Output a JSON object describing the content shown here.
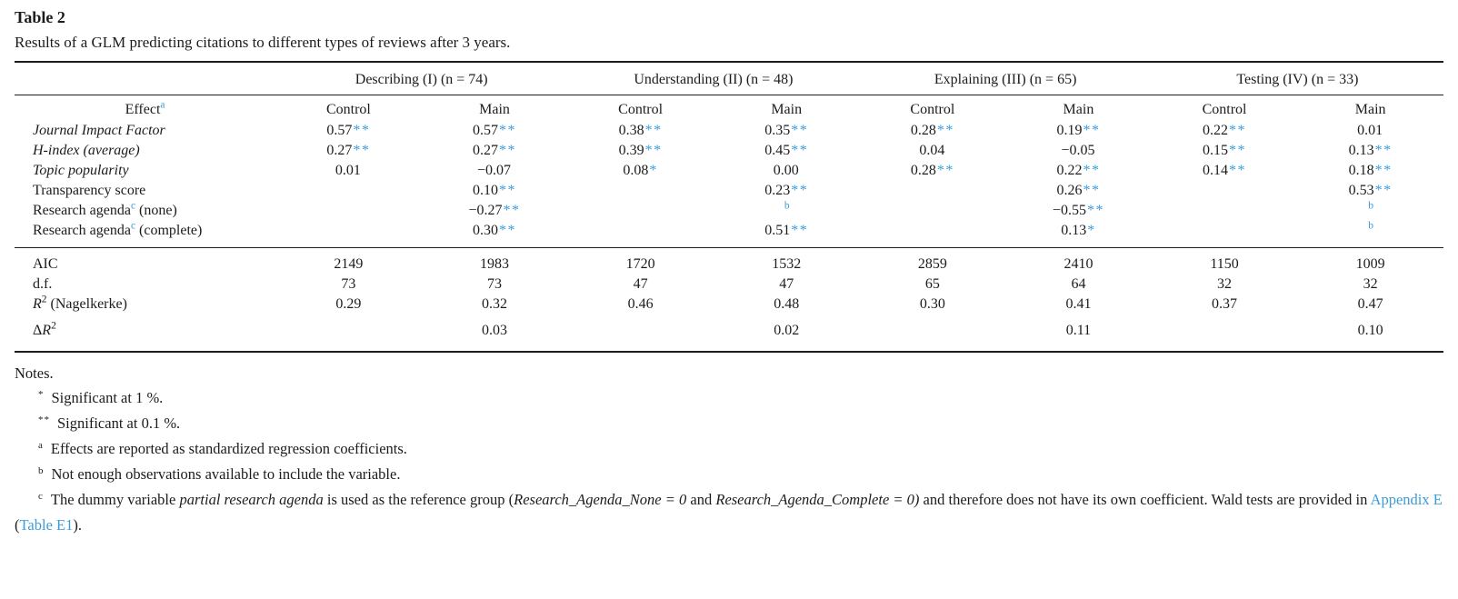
{
  "accent_color": "#3B9CD8",
  "title": "Table 2",
  "subtitle": "Results of a GLM predicting citations to different types of reviews after 3 years.",
  "groups": [
    "Describing (I) (n = 74)",
    "Understanding (II) (n = 48)",
    "Explaining (III) (n = 65)",
    "Testing (IV) (n = 33)"
  ],
  "header": {
    "effect": "Effect",
    "effect_sup": "a",
    "cols": [
      "Control",
      "Main",
      "Control",
      "Main",
      "Control",
      "Main",
      "Control",
      "Main"
    ]
  },
  "rows": [
    {
      "label": {
        "t": "Journal Impact Factor",
        "sup": "",
        "post": ""
      },
      "cells": [
        [
          "0.57",
          "**",
          ""
        ],
        [
          "0.57",
          "**",
          ""
        ],
        [
          "0.38",
          "**",
          ""
        ],
        [
          "0.35",
          "**",
          ""
        ],
        [
          "0.28",
          "**",
          ""
        ],
        [
          "0.19",
          "**",
          ""
        ],
        [
          "0.22",
          "**",
          ""
        ],
        [
          "0.01",
          "",
          ""
        ]
      ]
    },
    {
      "label": {
        "t": "H-index (average)",
        "sup": "",
        "post": ""
      },
      "cells": [
        [
          "0.27",
          "**",
          ""
        ],
        [
          "0.27",
          "**",
          ""
        ],
        [
          "0.39",
          "**",
          ""
        ],
        [
          "0.45",
          "**",
          ""
        ],
        [
          "0.04",
          "",
          ""
        ],
        [
          "−0.05",
          "",
          ""
        ],
        [
          "0.15",
          "**",
          ""
        ],
        [
          "0.13",
          "**",
          ""
        ]
      ]
    },
    {
      "label": {
        "t": "Topic popularity",
        "sup": "",
        "post": ""
      },
      "cells": [
        [
          "0.01",
          "",
          ""
        ],
        [
          "−0.07",
          "",
          ""
        ],
        [
          "0.08",
          "*",
          ""
        ],
        [
          "0.00",
          "",
          ""
        ],
        [
          "0.28",
          "**",
          ""
        ],
        [
          "0.22",
          "**",
          ""
        ],
        [
          "0.14",
          "**",
          ""
        ],
        [
          "0.18",
          "**",
          ""
        ]
      ]
    },
    {
      "label": {
        "t": "Transparency score",
        "sup": "",
        "post": ""
      },
      "cells": [
        [
          "",
          "",
          ""
        ],
        [
          "0.10",
          "**",
          ""
        ],
        [
          "",
          "",
          ""
        ],
        [
          "0.23",
          "**",
          ""
        ],
        [
          "",
          "",
          ""
        ],
        [
          "0.26",
          "**",
          ""
        ],
        [
          "",
          "",
          ""
        ],
        [
          "0.53",
          "**",
          ""
        ]
      ]
    },
    {
      "label": {
        "t": "Research agenda",
        "sup": "c",
        "post": " (none)"
      },
      "cells": [
        [
          "",
          "",
          ""
        ],
        [
          "−0.27",
          "**",
          ""
        ],
        [
          "",
          "",
          ""
        ],
        [
          "",
          "",
          "b"
        ],
        [
          "",
          "",
          ""
        ],
        [
          "−0.55",
          "**",
          ""
        ],
        [
          "",
          "",
          ""
        ],
        [
          "",
          "",
          "b"
        ]
      ]
    },
    {
      "label": {
        "t": "Research agenda",
        "sup": "c",
        "post": " (complete)"
      },
      "cells": [
        [
          "",
          "",
          ""
        ],
        [
          "0.30",
          "**",
          ""
        ],
        [
          "",
          "",
          ""
        ],
        [
          "0.51",
          "**",
          ""
        ],
        [
          "",
          "",
          ""
        ],
        [
          "0.13",
          "*",
          ""
        ],
        [
          "",
          "",
          ""
        ],
        [
          "",
          "",
          "b"
        ]
      ]
    }
  ],
  "stats": [
    {
      "label": {
        "lead": "AIC",
        "ital": "",
        "sup": "",
        "rest": ""
      },
      "cells": [
        "2149",
        "1983",
        "1720",
        "1532",
        "2859",
        "2410",
        "1150",
        "1009"
      ]
    },
    {
      "label": {
        "lead": "d.f.",
        "ital": "",
        "sup": "",
        "rest": ""
      },
      "cells": [
        "73",
        "73",
        "47",
        "47",
        "65",
        "64",
        "32",
        "32"
      ]
    },
    {
      "label": {
        "lead": "",
        "ital": "R",
        "sup": "2",
        "rest": " (Nagelkerke)"
      },
      "cells": [
        "0.29",
        "0.32",
        "0.46",
        "0.48",
        "0.30",
        "0.41",
        "0.37",
        "0.47"
      ]
    },
    {
      "label": {
        "lead": "Δ",
        "ital": "R",
        "sup": "2",
        "rest": ""
      },
      "cells": [
        "",
        "0.03",
        "",
        "0.02",
        "",
        "0.11",
        "",
        "0.10"
      ]
    }
  ],
  "notes": {
    "heading": "Notes.",
    "items": [
      {
        "marker": "*",
        "text": "Significant at 1 %."
      },
      {
        "marker": "**",
        "text": "Significant at 0.1 %."
      },
      {
        "marker": "a",
        "text": "Effects are reported as standardized regression coefficients."
      },
      {
        "marker": "b",
        "text": "Not enough observations available to include the variable."
      }
    ],
    "note_c": {
      "marker": "c",
      "s1": "The dummy variable ",
      "s2": "partial research agenda",
      "s3": " is used as the reference group (",
      "s4": "Research_Agenda_None = 0",
      "s5": " and ",
      "s6": "Research_Agenda_Complete = 0)",
      "s7": " and therefore does not have its own coefficient. Wald tests are provided in ",
      "link1": "Appendix E",
      "s8": " (",
      "link2": "Table E1",
      "s9": ")."
    }
  }
}
